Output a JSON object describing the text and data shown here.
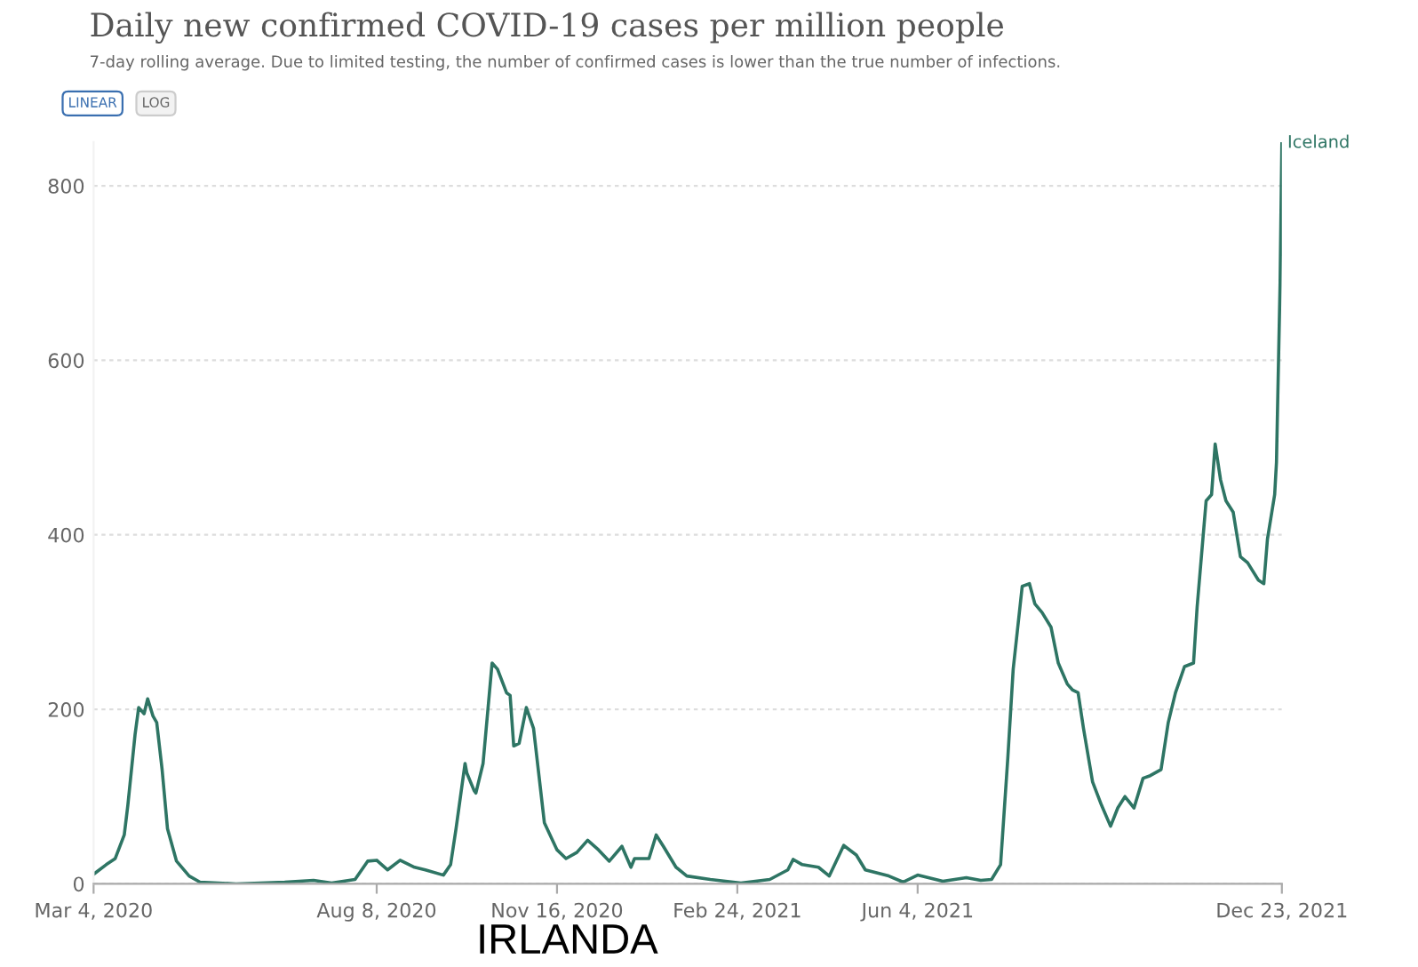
{
  "chart_data": {
    "type": "line",
    "title": "Daily new confirmed COVID-19 cases per million people",
    "subtitle": "7-day rolling average. Due to limited testing, the number of confirmed cases is lower than the true number of infections.",
    "annotations": [
      "LINEAR",
      "LOG",
      "IRLANDA"
    ],
    "x": [
      "2020-03-04",
      "2020-03-11",
      "2020-03-16",
      "2020-03-21",
      "2020-03-23",
      "2020-03-27",
      "2020-03-29",
      "2020-04-01",
      "2020-04-03",
      "2020-04-06",
      "2020-04-08",
      "2020-04-11",
      "2020-04-14",
      "2020-04-19",
      "2020-04-26",
      "2020-05-02",
      "2020-05-22",
      "2020-06-18",
      "2020-07-04",
      "2020-07-14",
      "2020-07-27",
      "2020-08-03",
      "2020-08-08",
      "2020-08-14",
      "2020-08-21",
      "2020-08-29",
      "2020-09-04",
      "2020-09-14",
      "2020-09-18",
      "2020-09-21",
      "2020-09-26",
      "2020-09-27",
      "2020-10-01",
      "2020-10-02",
      "2020-10-06",
      "2020-10-11",
      "2020-10-14",
      "2020-10-19",
      "2020-10-21",
      "2020-10-23",
      "2020-10-26",
      "2020-10-30",
      "2020-11-03",
      "2020-11-06",
      "2020-11-09",
      "2020-11-16",
      "2020-11-21",
      "2020-11-27",
      "2020-12-03",
      "2020-12-09",
      "2020-12-15",
      "2020-12-22",
      "2020-12-27",
      "2020-12-29",
      "2021-01-06",
      "2021-01-10",
      "2021-01-14",
      "2021-01-21",
      "2021-01-27",
      "2021-02-09",
      "2021-02-26",
      "2021-03-14",
      "2021-03-24",
      "2021-03-27",
      "2021-04-01",
      "2021-04-10",
      "2021-04-16",
      "2021-04-24",
      "2021-05-01",
      "2021-05-06",
      "2021-05-19",
      "2021-05-27",
      "2021-06-04",
      "2021-06-18",
      "2021-07-01",
      "2021-07-09",
      "2021-07-15",
      "2021-07-20",
      "2021-07-24",
      "2021-07-27",
      "2021-08-01",
      "2021-08-05",
      "2021-08-08",
      "2021-08-12",
      "2021-08-17",
      "2021-08-21",
      "2021-08-26",
      "2021-08-29",
      "2021-09-01",
      "2021-09-04",
      "2021-09-09",
      "2021-09-14",
      "2021-09-19",
      "2021-09-23",
      "2021-09-27",
      "2021-10-02",
      "2021-10-07",
      "2021-10-11",
      "2021-10-17",
      "2021-10-21",
      "2021-10-25",
      "2021-10-30",
      "2021-11-04",
      "2021-11-06",
      "2021-11-11",
      "2021-11-14",
      "2021-11-16",
      "2021-11-19",
      "2021-11-22",
      "2021-11-26",
      "2021-11-30",
      "2021-12-04",
      "2021-12-10",
      "2021-12-13",
      "2021-12-15",
      "2021-12-19",
      "2021-12-20",
      "2021-12-22",
      "2021-12-23"
    ],
    "series": [
      {
        "name": "Iceland",
        "color": "#2e7564",
        "values": [
          11,
          22,
          29,
          56,
          90,
          171,
          202,
          195,
          212,
          192,
          185,
          131,
          63,
          26,
          9,
          2,
          0,
          2,
          4,
          1,
          5,
          26,
          27,
          16,
          27,
          19,
          16,
          10,
          22,
          63,
          138,
          127,
          107,
          104,
          138,
          253,
          246,
          219,
          216,
          158,
          161,
          202,
          178,
          124,
          70,
          39,
          29,
          36,
          50,
          39,
          26,
          43,
          19,
          29,
          29,
          56,
          43,
          19,
          9,
          5,
          1,
          5,
          16,
          28,
          22,
          19,
          9,
          44,
          33,
          16,
          9,
          2,
          10,
          3,
          7,
          4,
          5,
          22,
          144,
          246,
          341,
          344,
          321,
          311,
          294,
          253,
          229,
          222,
          219,
          178,
          117,
          90,
          66,
          87,
          100,
          87,
          121,
          124,
          131,
          185,
          219,
          249,
          253,
          317,
          439,
          446,
          504,
          463,
          439,
          426,
          375,
          368,
          348,
          344,
          395,
          446,
          483,
          687,
          849
        ]
      }
    ],
    "xlim": [
      "2020-03-04",
      "2021-12-23"
    ],
    "xticks": [
      {
        "value": "2020-03-04",
        "label": "Mar 4, 2020"
      },
      {
        "value": "2020-08-08",
        "label": "Aug 8, 2020"
      },
      {
        "value": "2020-11-16",
        "label": "Nov 16, 2020"
      },
      {
        "value": "2021-02-24",
        "label": "Feb 24, 2021"
      },
      {
        "value": "2021-06-04",
        "label": "Jun 4, 2021"
      },
      {
        "value": "2021-12-23",
        "label": "Dec 23, 2021"
      }
    ],
    "ylim": [
      0,
      850
    ],
    "yticks": [
      0,
      200,
      400,
      600,
      800
    ],
    "grid": "y",
    "line_style": "solid"
  }
}
